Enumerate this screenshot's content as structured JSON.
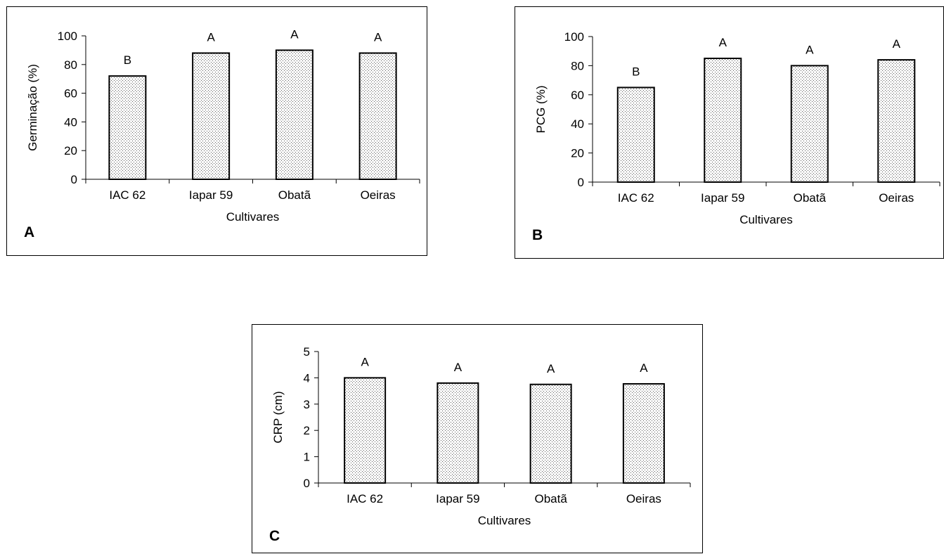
{
  "chart_data": [
    {
      "type": "bar",
      "panel_label": "A",
      "categories": [
        "IAC 62",
        "Iapar 59",
        "Obatã",
        "Oeiras"
      ],
      "values": [
        72,
        88,
        90,
        88
      ],
      "annotations": [
        "B",
        "A",
        "A",
        "A"
      ],
      "xlabel": "Cultivares",
      "ylabel": "Germinação (%)",
      "ylim": [
        0,
        100
      ],
      "yticks": [
        0,
        20,
        40,
        60,
        80,
        100
      ],
      "ytick_labels": [
        "0",
        "20",
        "40",
        "60",
        "80",
        "100"
      ],
      "grid": false,
      "legend": "none",
      "bar_fill": "dotted",
      "bar_color": "#ffffff",
      "edge_color": "#000000"
    },
    {
      "type": "bar",
      "panel_label": "B",
      "categories": [
        "IAC 62",
        "Iapar 59",
        "Obatã",
        "Oeiras"
      ],
      "values": [
        65,
        85,
        80,
        84
      ],
      "annotations": [
        "B",
        "A",
        "A",
        "A"
      ],
      "xlabel": "Cultivares",
      "ylabel": "PCG (%)",
      "ylim": [
        0,
        100
      ],
      "yticks": [
        0,
        20,
        40,
        60,
        80,
        100
      ],
      "ytick_labels": [
        "0",
        "20",
        "40",
        "60",
        "80",
        "100"
      ],
      "grid": false,
      "legend": "none",
      "bar_fill": "dotted",
      "bar_color": "#ffffff",
      "edge_color": "#000000"
    },
    {
      "type": "bar",
      "panel_label": "C",
      "categories": [
        "IAC 62",
        "Iapar 59",
        "Obatã",
        "Oeiras"
      ],
      "values": [
        4.0,
        3.8,
        3.75,
        3.77
      ],
      "annotations": [
        "A",
        "A",
        "A",
        "A"
      ],
      "xlabel": "Cultivares",
      "ylabel": "CRP (cm)",
      "ylim": [
        0,
        5
      ],
      "yticks": [
        0,
        1,
        2,
        3,
        4,
        5
      ],
      "ytick_labels": [
        "0",
        "1",
        "2",
        "3",
        "4",
        "5"
      ],
      "grid": false,
      "legend": "none",
      "bar_fill": "dotted",
      "bar_color": "#ffffff",
      "edge_color": "#000000"
    }
  ]
}
